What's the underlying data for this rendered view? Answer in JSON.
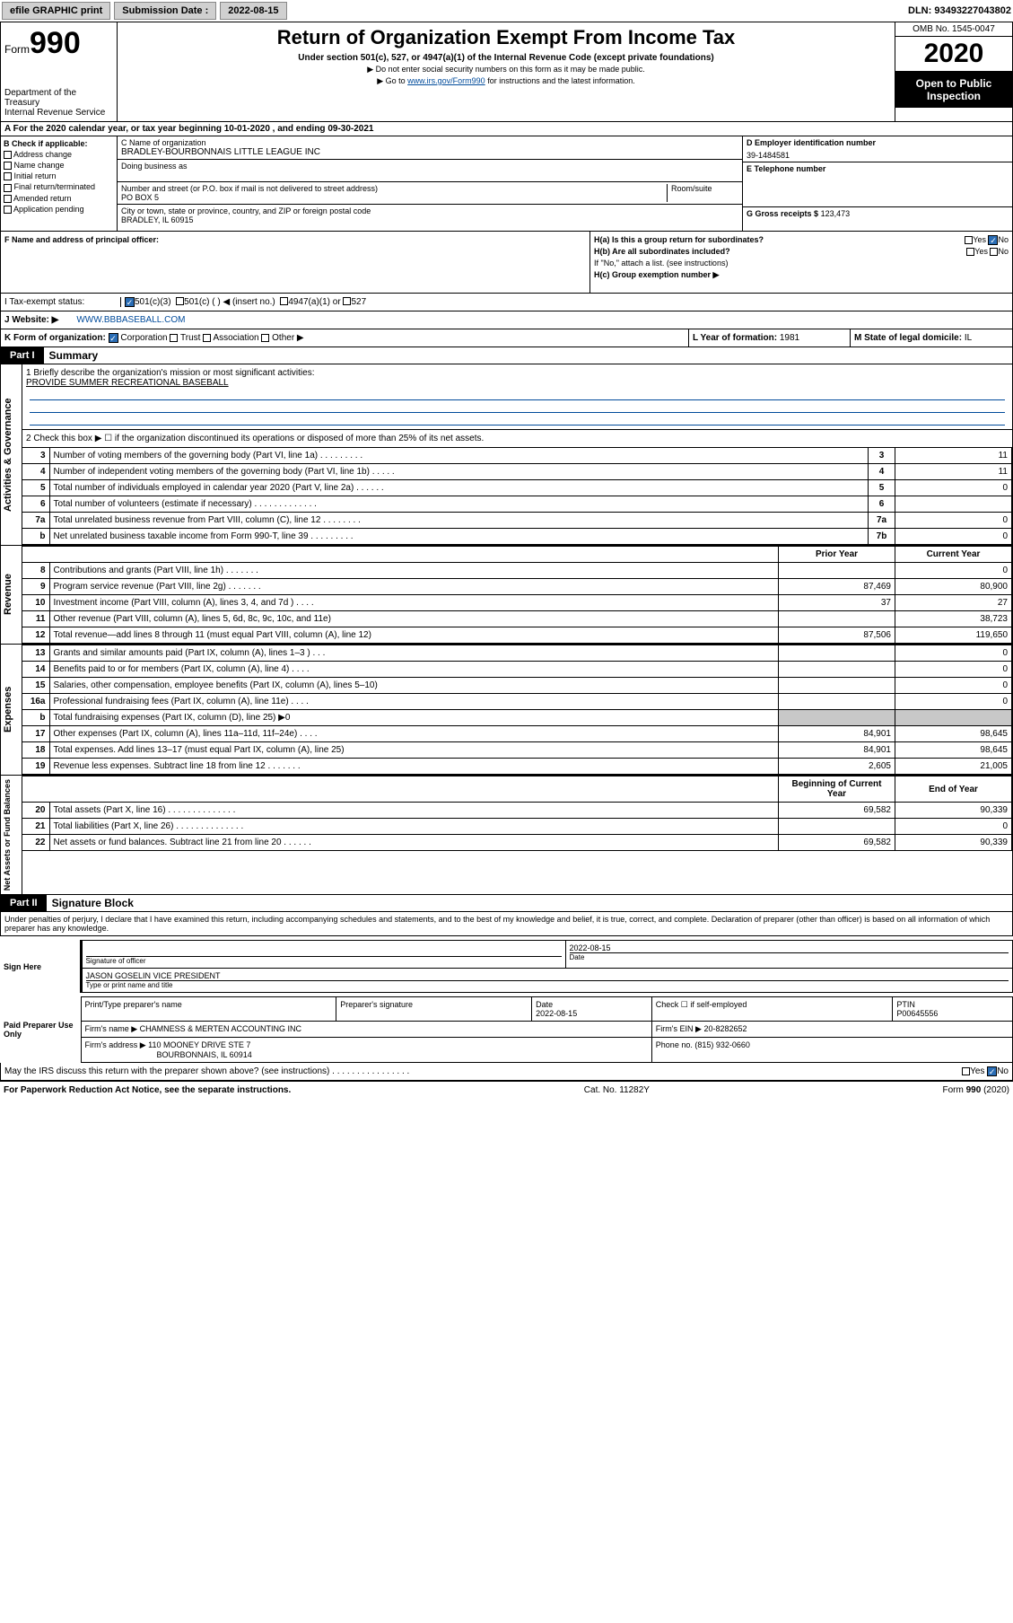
{
  "topbar": {
    "efile": "efile GRAPHIC print",
    "sub_label": "Submission Date :",
    "sub_date": "2022-08-15",
    "dln": "DLN: 93493227043802"
  },
  "header": {
    "form_word": "Form",
    "form_num": "990",
    "dept": "Department of the Treasury",
    "irs": "Internal Revenue Service",
    "title": "Return of Organization Exempt From Income Tax",
    "sub1": "Under section 501(c), 527, or 4947(a)(1) of the Internal Revenue Code (except private foundations)",
    "sub2": "▶ Do not enter social security numbers on this form as it may be made public.",
    "sub3_pre": "▶ Go to ",
    "sub3_link": "www.irs.gov/Form990",
    "sub3_post": " for instructions and the latest information.",
    "omb": "OMB No. 1545-0047",
    "year": "2020",
    "open": "Open to Public Inspection"
  },
  "row_a": "A For the 2020 calendar year, or tax year beginning 10-01-2020     , and ending 09-30-2021",
  "col_b": {
    "hdr": "B Check if applicable:",
    "items": [
      "Address change",
      "Name change",
      "Initial return",
      "Final return/terminated",
      "Amended return",
      "Application pending"
    ]
  },
  "col_c": {
    "name_lbl": "C Name of organization",
    "name": "BRADLEY-BOURBONNAIS LITTLE LEAGUE INC",
    "dba_lbl": "Doing business as",
    "addr_lbl": "Number and street (or P.O. box if mail is not delivered to street address)",
    "room_lbl": "Room/suite",
    "addr": "PO BOX 5",
    "city_lbl": "City or town, state or province, country, and ZIP or foreign postal code",
    "city": "BRADLEY, IL  60915"
  },
  "col_d": {
    "ein_lbl": "D Employer identification number",
    "ein": "39-1484581",
    "tel_lbl": "E Telephone number",
    "gross_lbl": "G Gross receipts $",
    "gross": "123,473"
  },
  "fg": {
    "f_lbl": "F Name and address of principal officer:",
    "ha_lbl": "H(a)  Is this a group return for subordinates?",
    "hb_lbl": "H(b)  Are all subordinates included?",
    "hb_note": "If \"No,\" attach a list. (see instructions)",
    "hc_lbl": "H(c)  Group exemption number ▶",
    "yes": "Yes",
    "no": "No"
  },
  "status": {
    "lbl": "Tax-exempt status:",
    "c3": "501(c)(3)",
    "c": "501(c) (    ) ◀ (insert no.)",
    "a1": "4947(a)(1) or",
    "s527": "527"
  },
  "j": {
    "lbl": "J  Website: ▶",
    "val": "WWW.BBBASEBALL.COM"
  },
  "k": {
    "lbl": "K Form of organization:",
    "corp": "Corporation",
    "trust": "Trust",
    "assoc": "Association",
    "other": "Other ▶"
  },
  "l": {
    "lbl": "L Year of formation:",
    "val": "1981"
  },
  "m": {
    "lbl": "M State of legal domicile:",
    "val": "IL"
  },
  "part1": {
    "hdr": "Part I",
    "title": "Summary"
  },
  "sec_gov": {
    "label": "Activities & Governance",
    "l1_lbl": "1  Briefly describe the organization's mission or most significant activities:",
    "l1_val": "PROVIDE SUMMER RECREATIONAL BASEBALL",
    "l2": "2  Check this box ▶ ☐  if the organization discontinued its operations or disposed of more than 25% of its net assets.",
    "rows": [
      {
        "n": "3",
        "d": "Number of voting members of the governing body (Part VI, line 1a)   .    .    .    .    .    .    .    .    .",
        "b": "3",
        "v": "11"
      },
      {
        "n": "4",
        "d": "Number of independent voting members of the governing body (Part VI, line 1b)    .    .    .    .    .",
        "b": "4",
        "v": "11"
      },
      {
        "n": "5",
        "d": "Total number of individuals employed in calendar year 2020 (Part V, line 2a)    .    .    .    .    .    .",
        "b": "5",
        "v": "0"
      },
      {
        "n": "6",
        "d": "Total number of volunteers (estimate if necessary)    .    .    .    .    .    .    .    .    .    .    .    .    .",
        "b": "6",
        "v": ""
      },
      {
        "n": "7a",
        "d": "Total unrelated business revenue from Part VIII, column (C), line 12    .    .    .    .    .    .    .    .",
        "b": "7a",
        "v": "0"
      },
      {
        "n": "b",
        "d": "Net unrelated business taxable income from Form 990-T, line 39    .    .    .    .    .    .    .    .    .",
        "b": "7b",
        "v": "0"
      }
    ]
  },
  "sec_rev": {
    "label": "Revenue",
    "prior_hdr": "Prior Year",
    "curr_hdr": "Current Year",
    "rows": [
      {
        "n": "8",
        "d": "Contributions and grants (Part VIII, line 1h)    .    .    .    .    .    .    .",
        "p": "",
        "c": "0"
      },
      {
        "n": "9",
        "d": "Program service revenue (Part VIII, line 2g)    .    .    .    .    .    .    .",
        "p": "87,469",
        "c": "80,900"
      },
      {
        "n": "10",
        "d": "Investment income (Part VIII, column (A), lines 3, 4, and 7d )    .    .    .    .",
        "p": "37",
        "c": "27"
      },
      {
        "n": "11",
        "d": "Other revenue (Part VIII, column (A), lines 5, 6d, 8c, 9c, 10c, and 11e)",
        "p": "",
        "c": "38,723"
      },
      {
        "n": "12",
        "d": "Total revenue—add lines 8 through 11 (must equal Part VIII, column (A), line 12)",
        "p": "87,506",
        "c": "119,650"
      }
    ]
  },
  "sec_exp": {
    "label": "Expenses",
    "rows": [
      {
        "n": "13",
        "d": "Grants and similar amounts paid (Part IX, column (A), lines 1–3 )    .    .    .",
        "p": "",
        "c": "0"
      },
      {
        "n": "14",
        "d": "Benefits paid to or for members (Part IX, column (A), line 4)    .    .    .    .",
        "p": "",
        "c": "0"
      },
      {
        "n": "15",
        "d": "Salaries, other compensation, employee benefits (Part IX, column (A), lines 5–10)",
        "p": "",
        "c": "0"
      },
      {
        "n": "16a",
        "d": "Professional fundraising fees (Part IX, column (A), line 11e)    .    .    .    .",
        "p": "",
        "c": "0"
      },
      {
        "n": "b",
        "d": "Total fundraising expenses (Part IX, column (D), line 25) ▶0",
        "p": "grey",
        "c": "grey"
      },
      {
        "n": "17",
        "d": "Other expenses (Part IX, column (A), lines 11a–11d, 11f–24e)    .    .    .    .",
        "p": "84,901",
        "c": "98,645"
      },
      {
        "n": "18",
        "d": "Total expenses. Add lines 13–17 (must equal Part IX, column (A), line 25)",
        "p": "84,901",
        "c": "98,645"
      },
      {
        "n": "19",
        "d": "Revenue less expenses. Subtract line 18 from line 12    .    .    .    .    .    .    .",
        "p": "2,605",
        "c": "21,005"
      }
    ]
  },
  "sec_net": {
    "label": "Net Assets or Fund Balances",
    "beg_hdr": "Beginning of Current Year",
    "end_hdr": "End of Year",
    "rows": [
      {
        "n": "20",
        "d": "Total assets (Part X, line 16)    .    .    .    .    .    .    .    .    .    .    .    .    .    .",
        "p": "69,582",
        "c": "90,339"
      },
      {
        "n": "21",
        "d": "Total liabilities (Part X, line 26)    .    .    .    .    .    .    .    .    .    .    .    .    .    .",
        "p": "",
        "c": "0"
      },
      {
        "n": "22",
        "d": "Net assets or fund balances. Subtract line 21 from line 20    .    .    .    .    .    .",
        "p": "69,582",
        "c": "90,339"
      }
    ]
  },
  "part2": {
    "hdr": "Part II",
    "title": "Signature Block"
  },
  "sig": {
    "decl": "Under penalties of perjury, I declare that I have examined this return, including accompanying schedules and statements, and to the best of my knowledge and belief, it is true, correct, and complete. Declaration of preparer (other than officer) is based on all information of which preparer has any knowledge.",
    "sign_here": "Sign Here",
    "sig_officer": "Signature of officer",
    "date_lbl": "Date",
    "date": "2022-08-15",
    "name": "JASON GOSELIN  VICE PRESIDENT",
    "name_lbl": "Type or print name and title",
    "paid": "Paid Preparer Use Only",
    "prep_name_lbl": "Print/Type preparer's name",
    "prep_sig_lbl": "Preparer's signature",
    "prep_date_lbl": "Date",
    "prep_date": "2022-08-15",
    "self_emp": "Check ☐ if self-employed",
    "ptin_lbl": "PTIN",
    "ptin": "P00645556",
    "firm_name_lbl": "Firm's name     ▶",
    "firm_name": "CHAMNESS & MERTEN ACCOUNTING INC",
    "firm_ein_lbl": "Firm's EIN ▶",
    "firm_ein": "20-8282652",
    "firm_addr_lbl": "Firm's address ▶",
    "firm_addr1": "110 MOONEY DRIVE STE 7",
    "firm_addr2": "BOURBONNAIS, IL  60914",
    "phone_lbl": "Phone no.",
    "phone": "(815) 932-0660",
    "discuss": "May the IRS discuss this return with the preparer shown above? (see instructions)    .    .    .    .    .    .    .    .    .    .    .    .    .    .    .    ."
  },
  "footer": {
    "left": "For Paperwork Reduction Act Notice, see the separate instructions.",
    "mid": "Cat. No. 11282Y",
    "right_form": "Form 990 (2020)"
  }
}
